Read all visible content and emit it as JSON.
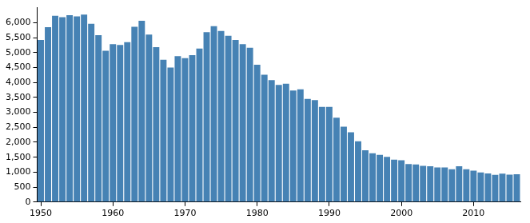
{
  "chart_data": {
    "type": "bar",
    "categories": [
      1950,
      null,
      null,
      null,
      null,
      null,
      null,
      null,
      null,
      null,
      1960,
      null,
      null,
      null,
      null,
      null,
      null,
      null,
      null,
      null,
      1970,
      null,
      null,
      null,
      null,
      null,
      null,
      null,
      null,
      null,
      1980,
      null,
      null,
      null,
      null,
      null,
      null,
      null,
      null,
      null,
      1990,
      null,
      null,
      null,
      null,
      null,
      null,
      null,
      null,
      null,
      2000,
      null,
      null,
      null,
      null,
      null,
      null,
      null,
      null,
      null,
      2010,
      null,
      null,
      null,
      null,
      null,
      null
    ],
    "values": [
      5420,
      5850,
      6230,
      6180,
      6250,
      6210,
      6270,
      5960,
      5580,
      5060,
      5280,
      5250,
      5350,
      5860,
      6060,
      5600,
      5180,
      4760,
      4500,
      4880,
      4810,
      4910,
      5130,
      5680,
      5880,
      5720,
      5560,
      5420,
      5280,
      5160,
      4590,
      4260,
      4080,
      3920,
      3960,
      3730,
      3770,
      3450,
      3410,
      3180,
      3180,
      2820,
      2520,
      2330,
      2030,
      1730,
      1630,
      1580,
      1510,
      1420,
      1400,
      1270,
      1260,
      1210,
      1200,
      1160,
      1160,
      1100,
      1200,
      1100,
      1050,
      990,
      960,
      910,
      950,
      920,
      930
    ],
    "color": "#4682b4",
    "ylim": [
      0,
      6500
    ],
    "yticks": [
      0,
      500,
      {
        "value": 1000,
        "label": "1,000"
      },
      {
        "value": 1500,
        "label": "1,500"
      },
      {
        "value": 2000,
        "label": "2,000"
      },
      {
        "value": 2500,
        "label": "2,500"
      },
      {
        "value": 3000,
        "label": "3,000"
      },
      {
        "value": 3500,
        "label": "3,500"
      },
      {
        "value": 4000,
        "label": "4,000"
      },
      {
        "value": 4500,
        "label": "4,500"
      },
      {
        "value": 5000,
        "label": "5,000"
      },
      {
        "value": 5500,
        "label": "5,500"
      },
      {
        "value": 6000,
        "label": "6,000"
      }
    ],
    "grid": false
  }
}
